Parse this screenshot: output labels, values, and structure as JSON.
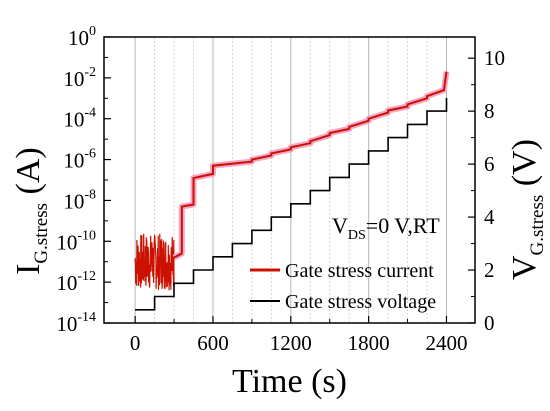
{
  "chart_data": {
    "type": "line",
    "xlabel": "Time (s)",
    "ylabel_left": {
      "main": "I",
      "sub": "G.stress",
      "unit": " (A)"
    },
    "ylabel_right": {
      "main": "V",
      "sub": "G.stress",
      "unit": " (V)"
    },
    "xlim": [
      -240,
      2620
    ],
    "ylim_left_log10": [
      -14,
      0
    ],
    "ylim_right": [
      0,
      10.8
    ],
    "y_left_scale": "log",
    "x_ticks": [
      "0",
      "600",
      "1200",
      "1800",
      "2400"
    ],
    "x_tick_values": [
      0,
      600,
      1200,
      1800,
      2400
    ],
    "y_left_tick_exponents": [
      "0",
      "-2",
      "-4",
      "-6",
      "-8",
      "-10",
      "-12",
      "-14"
    ],
    "y_left_tick_values": [
      0,
      -2,
      -4,
      -6,
      -8,
      -10,
      -12,
      -14
    ],
    "y_right_ticks": [
      "0",
      "2",
      "4",
      "6",
      "8",
      "10"
    ],
    "y_right_tick_values": [
      0,
      2,
      4,
      6,
      8,
      10
    ],
    "annotation": {
      "main": "V",
      "sub": "DS",
      "rest": "=0 V,RT"
    },
    "grid": "vertical",
    "legend_position": "bottom-right",
    "series": [
      {
        "name": "Gate stress current",
        "color": "#cc1100",
        "axis": "left",
        "noise_range": {
          "t": [
            0,
            300
          ],
          "log10": [
            -12.4,
            -9.6
          ]
        },
        "t": [
          300,
          360,
          360,
          450,
          450,
          600,
          600,
          900,
          900,
          1050,
          1050,
          1200,
          1200,
          1350,
          1350,
          1500,
          1500,
          1650,
          1650,
          1800,
          1800,
          1950,
          1950,
          2100,
          2100,
          2250,
          2250,
          2380,
          2400
        ],
        "log10": [
          -10.8,
          -10.6,
          -8.3,
          -8.2,
          -6.9,
          -6.7,
          -6.3,
          -6.1,
          -6.0,
          -5.8,
          -5.7,
          -5.5,
          -5.4,
          -5.2,
          -5.1,
          -4.8,
          -4.7,
          -4.5,
          -4.4,
          -4.1,
          -4.0,
          -3.7,
          -3.6,
          -3.4,
          -3.3,
          -3.0,
          -2.9,
          -2.6,
          -1.7
        ]
      },
      {
        "name": "Gate stress voltage",
        "color": "#000000",
        "axis": "right",
        "t": [
          0,
          150,
          150,
          300,
          300,
          450,
          450,
          600,
          600,
          750,
          750,
          900,
          900,
          1050,
          1050,
          1200,
          1200,
          1350,
          1350,
          1500,
          1500,
          1650,
          1650,
          1800,
          1800,
          1950,
          1950,
          2100,
          2100,
          2250,
          2250,
          2400,
          2400
        ],
        "v": [
          0.5,
          0.5,
          1.0,
          1.0,
          1.5,
          1.5,
          2.0,
          2.0,
          2.5,
          2.5,
          3.0,
          3.0,
          3.5,
          3.5,
          4.0,
          4.0,
          4.5,
          4.5,
          5.0,
          5.0,
          5.5,
          5.5,
          6.0,
          6.0,
          6.5,
          6.5,
          7.0,
          7.0,
          7.5,
          7.5,
          8.0,
          8.0,
          8.5
        ]
      }
    ]
  }
}
